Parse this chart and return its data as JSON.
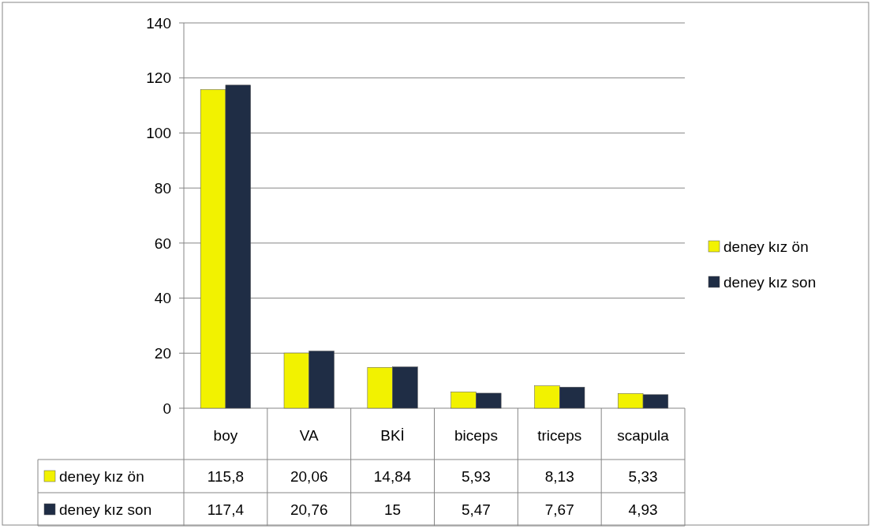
{
  "chart_data": {
    "type": "bar",
    "categories": [
      "boy",
      "VA",
      "BKİ",
      "biceps",
      "triceps",
      "scapula"
    ],
    "series": [
      {
        "name": "deney kız ön",
        "color": "#f2f200",
        "values": [
          115.8,
          20.06,
          14.84,
          5.93,
          8.13,
          5.33
        ],
        "value_labels": [
          "115,8",
          "20,06",
          "14,84",
          "5,93",
          "8,13",
          "5,33"
        ]
      },
      {
        "name": "deney kız son",
        "color": "#1f2d45",
        "values": [
          117.4,
          20.76,
          15,
          5.47,
          7.67,
          4.93
        ],
        "value_labels": [
          "117,4",
          "20,76",
          "15",
          "5,47",
          "7,67",
          "4,93"
        ]
      }
    ],
    "ylim": [
      0,
      140
    ],
    "yticks": [
      0,
      20,
      40,
      60,
      80,
      100,
      120,
      140
    ],
    "grid": "y",
    "legend": "right"
  }
}
